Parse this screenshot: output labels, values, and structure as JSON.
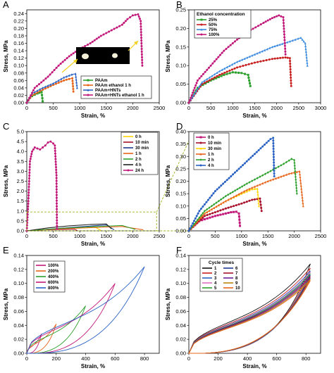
{
  "chart_data": [
    {
      "id": "A",
      "type": "line",
      "panel_label": "A",
      "xlabel": "Strain, %",
      "ylabel": "Stress, MPa",
      "xlim": [
        0,
        2500
      ],
      "ylim": [
        0,
        0.25
      ],
      "xticks": [
        0,
        500,
        1000,
        1500,
        2000,
        2500
      ],
      "yticks": [
        0.0,
        0.02,
        0.04,
        0.06,
        0.08,
        0.1,
        0.12,
        0.14,
        0.16,
        0.18,
        0.2,
        0.22,
        0.24
      ],
      "tick_decimals": 2,
      "legend": "bottom-right",
      "has_inset_photo": true,
      "series": [
        {
          "name": "PAAm",
          "color": "#2ca02c",
          "marker": "square",
          "x": [
            0,
            50,
            100,
            200,
            280,
            300
          ],
          "y": [
            0,
            0.012,
            0.018,
            0.025,
            0.029,
            0.004
          ]
        },
        {
          "name": "PAAm ethanol 1 h",
          "color": "#e8641b",
          "marker": "circle",
          "x": [
            0,
            100,
            300,
            500,
            700,
            800,
            860,
            880
          ],
          "y": [
            0,
            0.02,
            0.035,
            0.048,
            0.06,
            0.064,
            0.066,
            0.03
          ]
        },
        {
          "name": "PAAm+HNTs",
          "color": "#2a62c4",
          "marker": "triangle",
          "x": [
            0,
            100,
            300,
            500,
            700,
            850,
            920,
            950
          ],
          "y": [
            0,
            0.025,
            0.04,
            0.052,
            0.068,
            0.076,
            0.078,
            0.04
          ]
        },
        {
          "name": "PAAm+HNTs ethanol 1 h",
          "color": "#c2187a",
          "marker": "circle",
          "x": [
            0,
            150,
            400,
            600,
            800,
            1000,
            1200,
            1400,
            1600,
            1800,
            1900,
            2000,
            2100,
            2150,
            2180
          ],
          "y": [
            0,
            0.04,
            0.07,
            0.1,
            0.125,
            0.145,
            0.16,
            0.18,
            0.195,
            0.21,
            0.225,
            0.235,
            0.238,
            0.22,
            0.1
          ]
        }
      ]
    },
    {
      "id": "B",
      "type": "line",
      "panel_label": "B",
      "xlabel": "Strain, %",
      "ylabel": "Stress, MPa",
      "xlim": [
        0,
        3000
      ],
      "ylim": [
        0,
        0.25
      ],
      "xticks": [
        0,
        500,
        1000,
        1500,
        2000,
        2500,
        3000
      ],
      "yticks": [
        0.0,
        0.05,
        0.1,
        0.15,
        0.2,
        0.25
      ],
      "tick_decimals": 2,
      "legend": "top-left",
      "legend_title": "Ethanol concentration",
      "series": [
        {
          "name": "25%",
          "color": "#2ca02c",
          "marker": "square",
          "x": [
            0,
            200,
            500,
            800,
            1000,
            1200,
            1350,
            1400
          ],
          "y": [
            0,
            0.04,
            0.06,
            0.075,
            0.082,
            0.08,
            0.075,
            0.045
          ]
        },
        {
          "name": "50%",
          "color": "#c81e1e",
          "marker": "circle",
          "x": [
            0,
            300,
            700,
            1100,
            1500,
            1900,
            2200,
            2300,
            2330
          ],
          "y": [
            0,
            0.05,
            0.075,
            0.095,
            0.108,
            0.118,
            0.122,
            0.12,
            0.045
          ]
        },
        {
          "name": "75%",
          "color": "#3b8be0",
          "marker": "triangle",
          "x": [
            0,
            300,
            700,
            1100,
            1500,
            1900,
            2300,
            2550,
            2650,
            2700
          ],
          "y": [
            0,
            0.055,
            0.085,
            0.11,
            0.13,
            0.15,
            0.165,
            0.175,
            0.16,
            0.1
          ]
        },
        {
          "name": "100%",
          "color": "#c2187a",
          "marker": "circle",
          "x": [
            0,
            200,
            500,
            800,
            1100,
            1400,
            1700,
            1900,
            2050,
            2150,
            2200
          ],
          "y": [
            0,
            0.06,
            0.1,
            0.14,
            0.17,
            0.195,
            0.215,
            0.228,
            0.235,
            0.23,
            0.13
          ]
        }
      ]
    },
    {
      "id": "C",
      "type": "line",
      "panel_label": "C",
      "xlabel": "Strain, %",
      "ylabel": "Stress, MPa",
      "xlim": [
        0,
        2500
      ],
      "ylim": [
        0,
        5
      ],
      "xticks": [
        0,
        500,
        1000,
        1500,
        2000,
        2500
      ],
      "yticks": [
        0.0,
        0.5,
        1.0,
        1.5,
        2.0,
        2.5,
        3.0,
        3.5,
        4.0,
        4.5,
        5.0
      ],
      "tick_decimals": 1,
      "legend": "top-right",
      "zoom_box": {
        "x": [
          0,
          2450
        ],
        "y": [
          0,
          0.95
        ]
      },
      "series": [
        {
          "name": "0 h",
          "color": "#ffd400",
          "marker": "none",
          "x": [
            0,
            400,
            900,
            1300,
            1400
          ],
          "y": [
            0,
            0.08,
            0.13,
            0.17,
            0.02
          ]
        },
        {
          "name": "10 min",
          "color": "#a8102a",
          "marker": "none",
          "x": [
            0,
            300,
            600,
            900,
            950
          ],
          "y": [
            0,
            0.05,
            0.07,
            0.08,
            0.02
          ]
        },
        {
          "name": "30 min",
          "color": "#1f3a93",
          "marker": "none",
          "x": [
            0,
            500,
            1000,
            1500,
            1650
          ],
          "y": [
            0,
            0.1,
            0.2,
            0.3,
            0.05
          ]
        },
        {
          "name": "1 h",
          "color": "#e8641b",
          "marker": "none",
          "x": [
            0,
            600,
            1200,
            1800,
            2200
          ],
          "y": [
            0,
            0.1,
            0.16,
            0.22,
            0.05
          ]
        },
        {
          "name": "2 h",
          "color": "#2ca02c",
          "marker": "none",
          "x": [
            0,
            600,
            1200,
            1800,
            2050
          ],
          "y": [
            0,
            0.12,
            0.2,
            0.27,
            0.07
          ]
        },
        {
          "name": "4 h",
          "color": "#222222",
          "marker": "none",
          "x": [
            0,
            400,
            800,
            1200,
            1500,
            1600
          ],
          "y": [
            0,
            0.15,
            0.25,
            0.32,
            0.35,
            0.1
          ]
        },
        {
          "name": "24 h",
          "color": "#c2187a",
          "marker": "circle",
          "x": [
            0,
            30,
            60,
            100,
            150,
            200,
            250,
            300,
            350,
            400,
            450,
            500,
            530,
            560,
            570
          ],
          "y": [
            0,
            1.5,
            3.5,
            4.0,
            4.2,
            4.15,
            4.1,
            4.2,
            4.3,
            4.45,
            4.5,
            4.4,
            4.3,
            2.8,
            0.1
          ]
        }
      ]
    },
    {
      "id": "D",
      "type": "line",
      "panel_label": "D",
      "xlabel": "Strain, %",
      "ylabel": "Stress, MPa",
      "xlim": [
        0,
        2500
      ],
      "ylim": [
        0,
        0.4
      ],
      "xticks": [
        0,
        500,
        1000,
        1500,
        2000,
        2500
      ],
      "yticks": [
        0.0,
        0.05,
        0.1,
        0.15,
        0.2,
        0.25,
        0.3,
        0.35,
        0.4
      ],
      "tick_decimals": 2,
      "legend": "top-left",
      "series": [
        {
          "name": "0 h",
          "color": "#c2187a",
          "marker": "square",
          "x": [
            0,
            200,
            500,
            800,
            900,
            950,
            970
          ],
          "y": [
            0,
            0.04,
            0.06,
            0.075,
            0.077,
            0.07,
            0.02
          ]
        },
        {
          "name": "10 min",
          "color": "#a8102a",
          "marker": "circle",
          "x": [
            0,
            300,
            700,
            1000,
            1200,
            1350,
            1380
          ],
          "y": [
            0,
            0.06,
            0.09,
            0.11,
            0.125,
            0.13,
            0.08
          ]
        },
        {
          "name": "30 min",
          "color": "#ffd400",
          "marker": "triangle",
          "x": [
            0,
            300,
            700,
            1000,
            1200,
            1300,
            1330
          ],
          "y": [
            0,
            0.07,
            0.12,
            0.15,
            0.168,
            0.17,
            0.1
          ]
        },
        {
          "name": "1 h",
          "color": "#e8641b",
          "marker": "triangle",
          "x": [
            0,
            300,
            700,
            1100,
            1500,
            1900,
            2100,
            2170
          ],
          "y": [
            0,
            0.07,
            0.12,
            0.165,
            0.2,
            0.23,
            0.24,
            0.1
          ]
        },
        {
          "name": "2 h",
          "color": "#2ca02c",
          "marker": "diamond",
          "x": [
            0,
            300,
            700,
            1100,
            1500,
            1800,
            1950,
            2000,
            2050
          ],
          "y": [
            0,
            0.08,
            0.14,
            0.19,
            0.235,
            0.27,
            0.29,
            0.285,
            0.15
          ]
        },
        {
          "name": "4 h",
          "color": "#2a62c4",
          "marker": "circle",
          "x": [
            0,
            200,
            500,
            800,
            1100,
            1400,
            1550,
            1600,
            1620
          ],
          "y": [
            0,
            0.08,
            0.16,
            0.22,
            0.28,
            0.34,
            0.37,
            0.375,
            0.22
          ]
        }
      ]
    },
    {
      "id": "E",
      "type": "line",
      "panel_label": "E",
      "xlabel": "Strain, %",
      "ylabel": "Stress, MPa",
      "xlim": [
        0,
        900
      ],
      "ylim": [
        0,
        0.14
      ],
      "xticks": [
        0,
        200,
        400,
        600,
        800
      ],
      "yticks": [
        0.0,
        0.02,
        0.04,
        0.06,
        0.08,
        0.1,
        0.12,
        0.14
      ],
      "tick_decimals": 2,
      "legend": "top-left",
      "closed_loops": true,
      "series": [
        {
          "name": "100%",
          "color": "#c2187a",
          "max_x": 100,
          "max_y": 0.028
        },
        {
          "name": "200%",
          "color": "#e8641b",
          "max_x": 200,
          "max_y": 0.042
        },
        {
          "name": "400%",
          "color": "#2ca02c",
          "max_x": 400,
          "max_y": 0.068
        },
        {
          "name": "600%",
          "color": "#c2187a",
          "max_x": 600,
          "max_y": 0.1
        },
        {
          "name": "800%",
          "color": "#2a62c4",
          "max_x": 800,
          "max_y": 0.124
        }
      ]
    },
    {
      "id": "F",
      "type": "line",
      "panel_label": "F",
      "xlabel": "Strain, %",
      "ylabel": "Stress, MPa",
      "xlim": [
        0,
        900
      ],
      "ylim": [
        0,
        0.14
      ],
      "xticks": [
        0,
        200,
        400,
        600,
        800
      ],
      "yticks": [
        0.0,
        0.02,
        0.04,
        0.06,
        0.08,
        0.1,
        0.12,
        0.14
      ],
      "tick_decimals": 2,
      "legend": "top-left",
      "legend_title": "Cycle times",
      "closed_loops": true,
      "series": [
        {
          "name": "1",
          "color": "#111111",
          "max_x": 830,
          "max_y": 0.128
        },
        {
          "name": "2",
          "color": "#c81e1e",
          "max_x": 830,
          "max_y": 0.122
        },
        {
          "name": "3",
          "color": "#2a62c4",
          "max_x": 830,
          "max_y": 0.118
        },
        {
          "name": "4",
          "color": "#e06fc0",
          "max_x": 830,
          "max_y": 0.116
        },
        {
          "name": "5",
          "color": "#2ca02c",
          "max_x": 830,
          "max_y": 0.114
        },
        {
          "name": "6",
          "color": "#1f3a93",
          "max_x": 830,
          "max_y": 0.112
        },
        {
          "name": "7",
          "color": "#a8102a",
          "max_x": 830,
          "max_y": 0.11
        },
        {
          "name": "8",
          "color": "#6a1f9a",
          "max_x": 830,
          "max_y": 0.108
        },
        {
          "name": "9",
          "color": "#b8860b",
          "max_x": 830,
          "max_y": 0.106
        },
        {
          "name": "10",
          "color": "#e8641b",
          "max_x": 830,
          "max_y": 0.104
        }
      ]
    }
  ]
}
